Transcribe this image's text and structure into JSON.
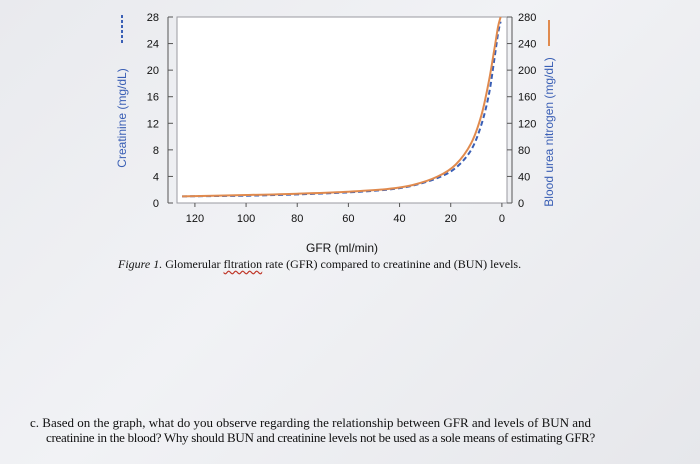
{
  "chart_data": {
    "type": "line",
    "title": "",
    "xlabel": "GFR (ml/min)",
    "ylabel_left": "Creatinine (mg/dL)",
    "ylabel_right": "Blood urea nitrogen (mg/dL)",
    "x_ticks": [
      "120",
      "100",
      "80",
      "60",
      "40",
      "20",
      "0"
    ],
    "xlim": [
      127,
      -2
    ],
    "x_reversed": true,
    "y_left_ticks": [
      "0",
      "4",
      "8",
      "12",
      "16",
      "20",
      "24",
      "28"
    ],
    "ylim_left": [
      0,
      28
    ],
    "y_right_ticks": [
      "0",
      "40",
      "80",
      "120",
      "160",
      "200",
      "240",
      "280"
    ],
    "ylim_right": [
      0,
      280
    ],
    "grid": false,
    "series": [
      {
        "name": "Creatinine (mg/dL)",
        "axis": "left",
        "style": "dashed",
        "color": "#3a5fb5",
        "x": [
          125,
          100,
          80,
          60,
          45,
          35,
          25,
          18,
          12,
          8,
          5,
          3,
          1.5,
          0.5
        ],
        "y": [
          1.0,
          1.1,
          1.3,
          1.6,
          2.0,
          2.6,
          3.8,
          5.3,
          8.0,
          11.8,
          16.5,
          21.5,
          25.5,
          27.3
        ]
      },
      {
        "name": "Blood urea nitrogen (mg/dL)",
        "axis": "right",
        "style": "solid",
        "color": "#e08a4e",
        "x": [
          125,
          100,
          80,
          60,
          45,
          35,
          25,
          18,
          12,
          8,
          5,
          3,
          1.5,
          0.5
        ],
        "y": [
          10,
          12,
          14,
          17,
          21,
          27,
          40,
          58,
          90,
          132,
          185,
          230,
          265,
          280
        ]
      }
    ]
  },
  "caption": {
    "figure_label": "Figure 1.",
    "text_before": " Glomerular ",
    "underlined_word": "fltration",
    "text_after": " rate (GFR) compared to creatinine and (BUN) levels."
  },
  "question": {
    "marker": "c.",
    "line1": "Based on the graph, what do you observe regarding the relationship between GFR and levels of BUN and",
    "line2": "creatinine in the blood? Why should BUN and creatinine levels not be used as a sole means of estimating GFR?"
  }
}
